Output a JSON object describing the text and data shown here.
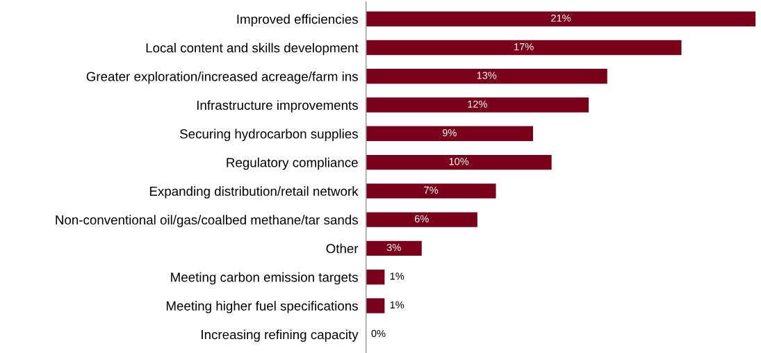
{
  "chart_data": {
    "type": "bar",
    "orientation": "horizontal",
    "categories": [
      "Improved efficiencies",
      "Local content and skills development",
      "Greater exploration/increased acreage/farm ins",
      "Infrastructure improvements",
      "Securing hydrocarbon supplies",
      "Regulatory compliance",
      "Expanding distribution/retail network",
      "Non-conventional oil/gas/coalbed methane/tar sands",
      "Other",
      "Meeting carbon emission targets",
      "Meeting higher fuel specifications",
      "Increasing refining capacity"
    ],
    "values": [
      21,
      17,
      13,
      12,
      9,
      10,
      7,
      6,
      3,
      1,
      1,
      0
    ],
    "value_labels": [
      "21%",
      "17%",
      "13%",
      "12%",
      "9%",
      "10%",
      "7%",
      "6%",
      "3%",
      "1%",
      "1%",
      "0%"
    ],
    "color": "#7b0019",
    "xlim": [
      0,
      21
    ],
    "tick_labels": "y",
    "grid": false,
    "legend": false
  }
}
